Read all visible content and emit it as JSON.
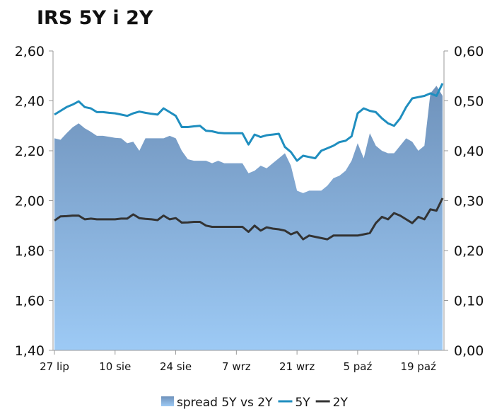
{
  "chart_data": {
    "type": "line",
    "title": "IRS 5Y i 2Y",
    "left_axis": {
      "min": 1.4,
      "max": 2.6,
      "ticks": [
        "1,40",
        "1,60",
        "1,80",
        "2,00",
        "2,20",
        "2,40",
        "2,60"
      ]
    },
    "right_axis": {
      "min": 0.0,
      "max": 0.6,
      "ticks": [
        "0,00",
        "0,10",
        "0,20",
        "0,30",
        "0,40",
        "0,50",
        "0,60"
      ]
    },
    "x_ticks": [
      {
        "label": "27 lip",
        "index": 0
      },
      {
        "label": "10 sie",
        "index": 10
      },
      {
        "label": "24 sie",
        "index": 20
      },
      {
        "label": "7 wrz",
        "index": 30
      },
      {
        "label": "21 wrz",
        "index": 40
      },
      {
        "label": "5 paź",
        "index": 50
      },
      {
        "label": "19 paź",
        "index": 60
      }
    ],
    "n_points": 65,
    "series": [
      {
        "name": "spread 5Y vs 2Y",
        "type": "area",
        "axis": "right",
        "color_top": "#6f92bb",
        "color_bottom": "#9dcaf5",
        "values": [
          0.425,
          0.422,
          0.435,
          0.447,
          0.455,
          0.445,
          0.438,
          0.43,
          0.43,
          0.428,
          0.426,
          0.425,
          0.415,
          0.418,
          0.4,
          0.425,
          0.425,
          0.425,
          0.425,
          0.43,
          0.425,
          0.4,
          0.383,
          0.38,
          0.38,
          0.38,
          0.375,
          0.38,
          0.375,
          0.375,
          0.375,
          0.375,
          0.355,
          0.36,
          0.37,
          0.365,
          0.375,
          0.385,
          0.395,
          0.37,
          0.32,
          0.315,
          0.32,
          0.32,
          0.32,
          0.33,
          0.345,
          0.35,
          0.36,
          0.38,
          0.415,
          0.385,
          0.435,
          0.41,
          0.4,
          0.395,
          0.395,
          0.41,
          0.425,
          0.418,
          0.4,
          0.41,
          0.515,
          0.53,
          0.51
        ]
      },
      {
        "name": "5Y",
        "type": "line",
        "axis": "left",
        "color": "#1f8ebf",
        "values": [
          2.345,
          2.36,
          2.375,
          2.385,
          2.398,
          2.375,
          2.37,
          2.355,
          2.355,
          2.352,
          2.35,
          2.345,
          2.34,
          2.35,
          2.357,
          2.352,
          2.348,
          2.345,
          2.37,
          2.355,
          2.34,
          2.295,
          2.295,
          2.298,
          2.3,
          2.28,
          2.278,
          2.272,
          2.27,
          2.27,
          2.27,
          2.27,
          2.225,
          2.265,
          2.255,
          2.262,
          2.265,
          2.268,
          2.215,
          2.195,
          2.16,
          2.18,
          2.175,
          2.17,
          2.2,
          2.21,
          2.22,
          2.235,
          2.24,
          2.258,
          2.35,
          2.37,
          2.36,
          2.355,
          2.33,
          2.31,
          2.3,
          2.33,
          2.375,
          2.41,
          2.415,
          2.42,
          2.43,
          2.42,
          2.47
        ]
      },
      {
        "name": "2Y",
        "type": "line",
        "axis": "left",
        "color": "#333333",
        "values": [
          1.92,
          1.937,
          1.938,
          1.94,
          1.94,
          1.925,
          1.928,
          1.925,
          1.925,
          1.925,
          1.925,
          1.928,
          1.928,
          1.945,
          1.93,
          1.927,
          1.925,
          1.922,
          1.94,
          1.925,
          1.93,
          1.912,
          1.913,
          1.915,
          1.915,
          1.9,
          1.895,
          1.895,
          1.895,
          1.895,
          1.895,
          1.895,
          1.875,
          1.9,
          1.88,
          1.893,
          1.888,
          1.885,
          1.88,
          1.865,
          1.875,
          1.845,
          1.86,
          1.855,
          1.85,
          1.845,
          1.86,
          1.86,
          1.86,
          1.86,
          1.86,
          1.865,
          1.87,
          1.91,
          1.935,
          1.925,
          1.95,
          1.94,
          1.925,
          1.91,
          1.935,
          1.925,
          1.965,
          1.96,
          2.01
        ]
      }
    ],
    "legend": {
      "position": "bottom",
      "items": [
        {
          "label": "spread 5Y vs 2Y",
          "type": "area"
        },
        {
          "label": "5Y",
          "type": "line"
        },
        {
          "label": "2Y",
          "type": "line"
        }
      ]
    }
  }
}
